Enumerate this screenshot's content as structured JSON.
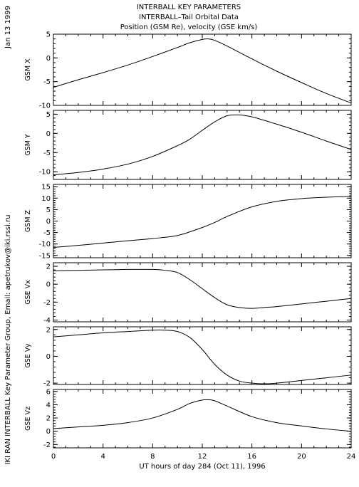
{
  "header": {
    "title_lines": [
      "INTERBALL KEY PARAMETERS",
      "INTERBALL–Tail Orbital Data",
      "Position (GSM Re), velocity (GSE km/s)"
    ],
    "date_label": "Jan 13 1999",
    "credit_label": "IKI RAN INTERBALL Key Parameter Group, Email: apetrukov@iki.rssi.ru"
  },
  "chart_data": {
    "type": "line",
    "xlabel": "UT hours of day 284 (Oct 11), 1996",
    "xlim": [
      0,
      24
    ],
    "xticks": [
      0,
      4,
      8,
      12,
      16,
      20,
      24
    ],
    "grid": false,
    "panels": [
      {
        "ylabel": "GSM X",
        "ylim": [
          -10,
          5
        ],
        "yticks": [
          5,
          0,
          -5,
          -10
        ],
        "x": [
          0,
          2,
          4,
          6,
          8,
          10,
          11,
          12,
          12.5,
          13,
          14,
          16,
          18,
          20,
          22,
          24
        ],
        "y": [
          -6.2,
          -4.6,
          -3.1,
          -1.5,
          0.3,
          2.2,
          3.2,
          3.9,
          4.0,
          3.7,
          2.5,
          -0.2,
          -2.8,
          -5.2,
          -7.5,
          -9.5
        ]
      },
      {
        "ylabel": "GSM Y",
        "ylim": [
          -12,
          6
        ],
        "yticks": [
          5,
          0,
          -5,
          -10
        ],
        "x": [
          0,
          2,
          4,
          6,
          8,
          10,
          11,
          12,
          13,
          14,
          15,
          16,
          18,
          20,
          22,
          24
        ],
        "y": [
          -10.8,
          -10.2,
          -9.3,
          -8.0,
          -6.0,
          -3.2,
          -1.5,
          0.8,
          3.0,
          4.6,
          4.8,
          4.3,
          2.4,
          0.3,
          -2.0,
          -4.2
        ]
      },
      {
        "ylabel": "GSM Z",
        "ylim": [
          -16,
          16
        ],
        "yticks": [
          15,
          10,
          5,
          0,
          -5,
          -10,
          -15
        ],
        "x": [
          0,
          2,
          4,
          6,
          8,
          10,
          12,
          13,
          14,
          16,
          18,
          20,
          22,
          24
        ],
        "y": [
          -11.5,
          -10.6,
          -9.6,
          -8.6,
          -7.6,
          -6.3,
          -2.8,
          -0.6,
          2.0,
          6.2,
          8.6,
          9.8,
          10.4,
          10.8
        ]
      },
      {
        "ylabel": "GSE Vx",
        "ylim": [
          -4.2,
          2.4
        ],
        "yticks": [
          2,
          0,
          -2,
          -4
        ],
        "x": [
          0,
          2,
          4,
          6,
          8,
          9,
          10,
          11,
          12,
          13,
          14,
          15,
          16,
          17,
          18,
          20,
          22,
          24
        ],
        "y": [
          1.5,
          1.55,
          1.6,
          1.65,
          1.65,
          1.55,
          1.3,
          0.5,
          -0.5,
          -1.5,
          -2.3,
          -2.6,
          -2.7,
          -2.6,
          -2.5,
          -2.2,
          -1.9,
          -1.6
        ]
      },
      {
        "ylabel": "GSE Vy",
        "ylim": [
          -2.1,
          2.2
        ],
        "yticks": [
          2,
          0,
          -2
        ],
        "x": [
          0,
          2,
          4,
          6,
          8,
          9,
          10,
          11,
          12,
          13,
          14,
          15,
          16,
          17,
          18,
          20,
          22,
          24
        ],
        "y": [
          1.45,
          1.6,
          1.75,
          1.85,
          1.95,
          1.95,
          1.85,
          1.4,
          0.5,
          -0.6,
          -1.4,
          -1.85,
          -2.0,
          -2.05,
          -2.0,
          -1.8,
          -1.6,
          -1.4
        ]
      },
      {
        "ylabel": "GSE Vz",
        "ylim": [
          -2.5,
          6.3
        ],
        "yticks": [
          6,
          4,
          2,
          0,
          -2
        ],
        "x": [
          0,
          2,
          4,
          6,
          8,
          10,
          11,
          12,
          12.5,
          13,
          14,
          16,
          18,
          20,
          22,
          24
        ],
        "y": [
          0.4,
          0.65,
          0.9,
          1.3,
          2.0,
          3.3,
          4.2,
          4.7,
          4.75,
          4.6,
          3.8,
          2.2,
          1.3,
          0.8,
          0.35,
          0.0
        ]
      }
    ]
  }
}
